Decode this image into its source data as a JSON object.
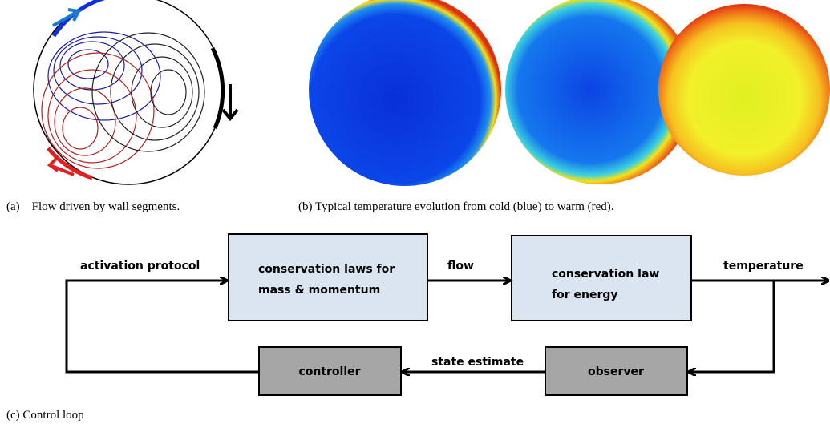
{
  "panels": {
    "a": {
      "caption": "(a)    Flow driven by wall segments."
    },
    "b": {
      "caption": "(b) Typical temperature evolution from cold (blue) to warm (red)."
    },
    "c": {
      "caption": "(c) Control loop"
    }
  },
  "nodes": [
    {
      "lines": [
        "conservation laws for",
        "mass & momentum"
      ]
    },
    {
      "lines": [
        "conservation law",
        "for energy"
      ]
    },
    {
      "lines": [
        "controller"
      ]
    },
    {
      "lines": [
        "observer"
      ]
    }
  ],
  "edges": [
    {
      "label": "activation protocol"
    },
    {
      "label": "flow"
    },
    {
      "label": "temperature"
    },
    {
      "label": "state estimate"
    }
  ]
}
